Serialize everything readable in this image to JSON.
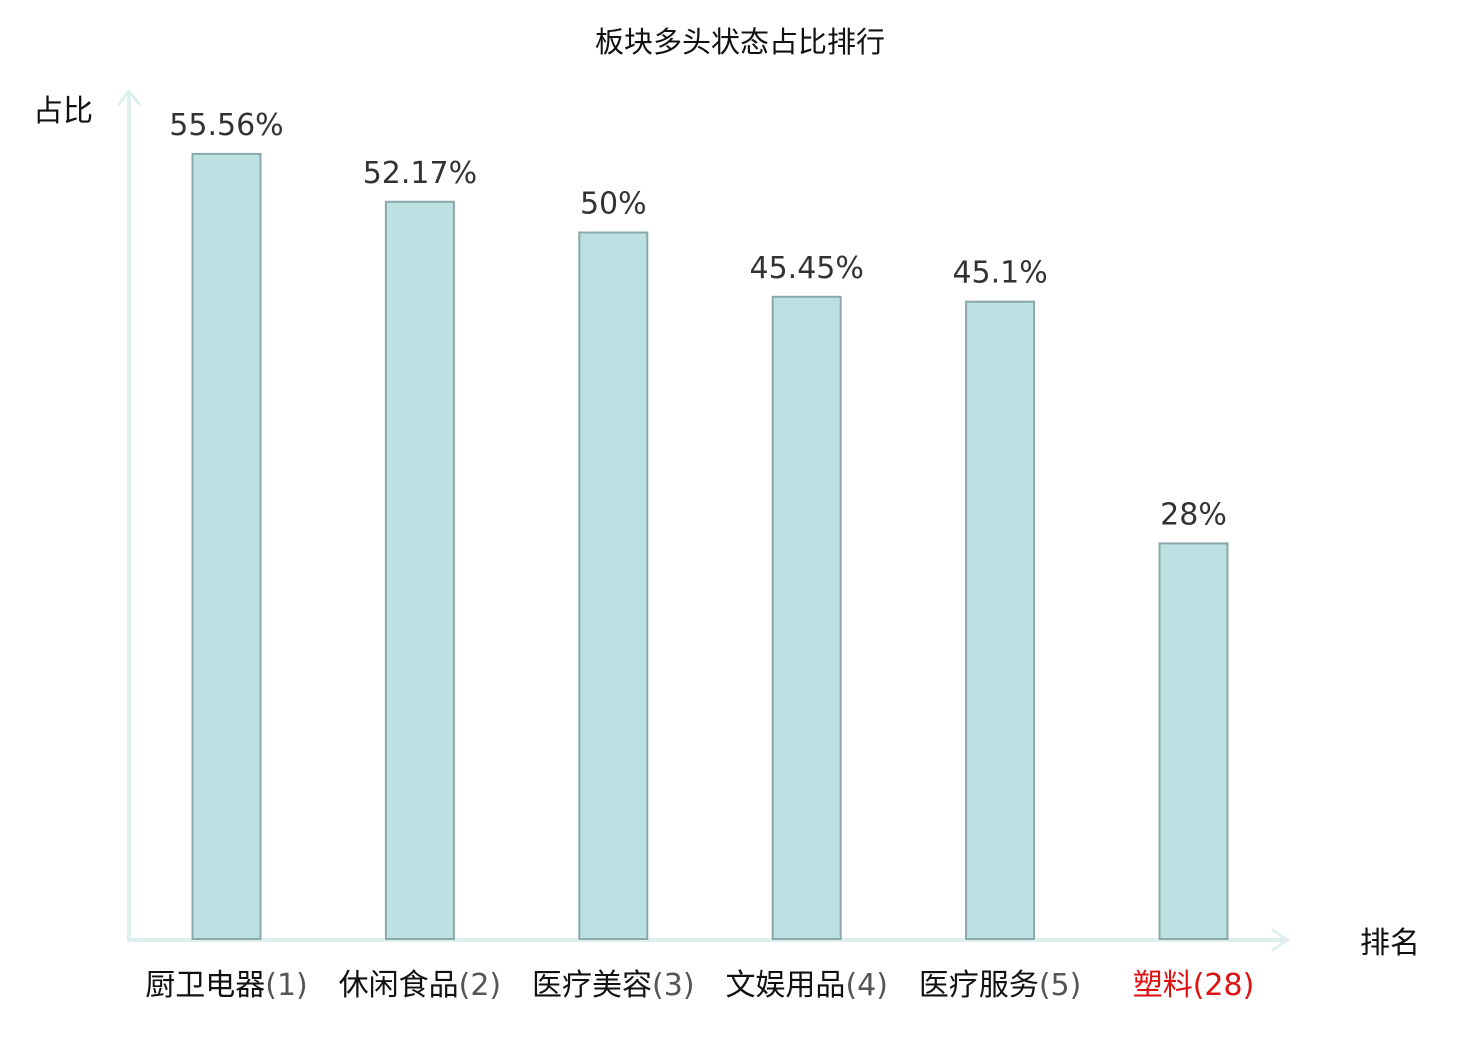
{
  "chart_data": {
    "type": "bar",
    "title": "板块多头状态占比排行",
    "ylabel": "占比",
    "xlabel": "排名",
    "categories": [
      {
        "name": "厨卫电器",
        "rank": "(1)",
        "highlight": false
      },
      {
        "name": "休闲食品",
        "rank": "(2)",
        "highlight": false
      },
      {
        "name": "医疗美容",
        "rank": "(3)",
        "highlight": false
      },
      {
        "name": "文娱用品",
        "rank": "(4)",
        "highlight": false
      },
      {
        "name": "医疗服务",
        "rank": "(5)",
        "highlight": false
      },
      {
        "name": "塑料",
        "rank": "(28)",
        "highlight": true
      }
    ],
    "values": [
      55.56,
      52.17,
      50,
      45.45,
      45.1,
      28
    ],
    "value_labels": [
      "55.56%",
      "52.17%",
      "50%",
      "45.45%",
      "45.1%",
      "28%"
    ],
    "ylim": [
      0,
      60
    ],
    "grid": false,
    "legend": "none",
    "colors": {
      "bar_fill": "#bde0e2",
      "bar_stroke": "#8aa8aa",
      "axis": "#ddf0ee",
      "label_text": "#333333",
      "category_text": "#111111",
      "rank_text": "#555555",
      "highlight_text": "#dd1111"
    }
  }
}
